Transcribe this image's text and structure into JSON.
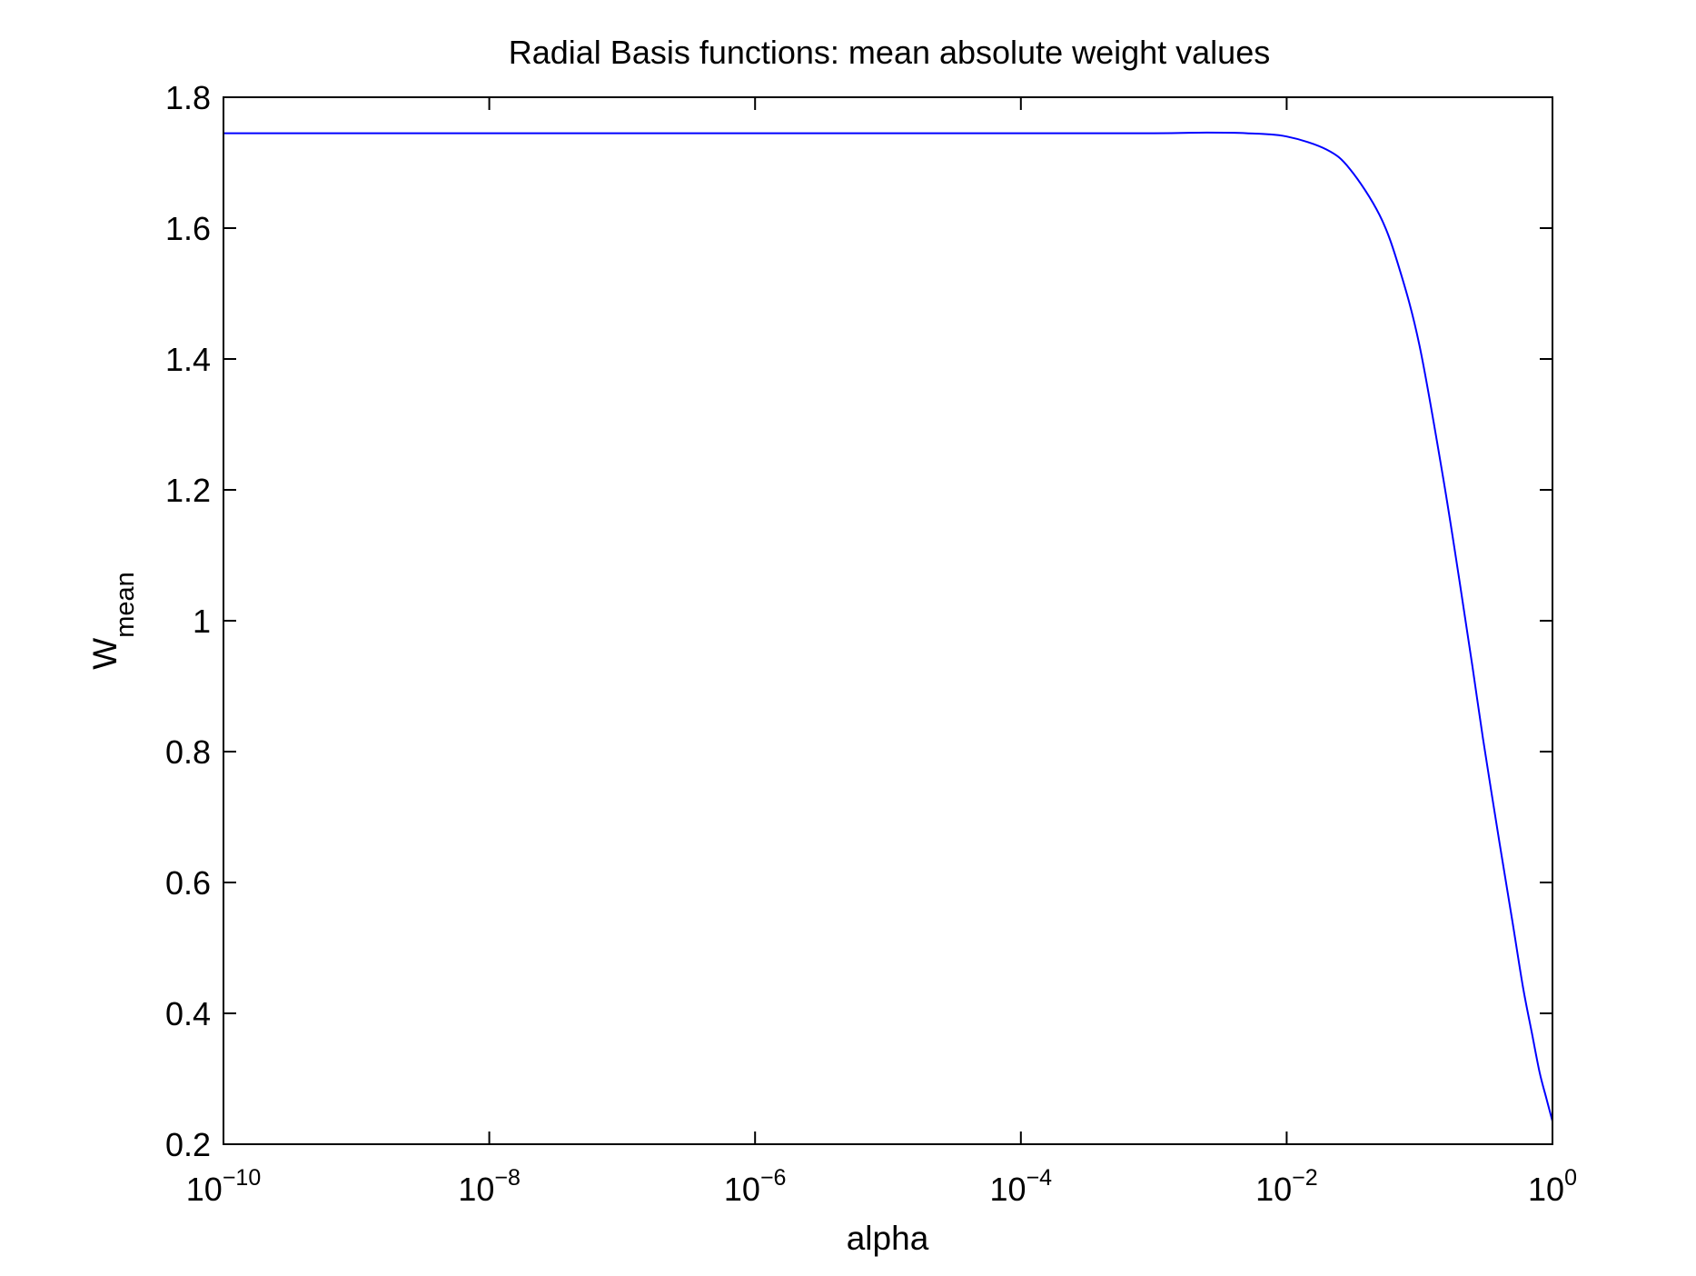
{
  "chart_data": {
    "type": "line",
    "title": "Radial Basis functions: mean absolute weight values",
    "xlabel": "alpha",
    "ylabel": {
      "main": "W",
      "subscript": "mean"
    },
    "x_scale": "log",
    "xlim": [
      1e-10,
      1
    ],
    "ylim": [
      0.2,
      1.8
    ],
    "grid": false,
    "x_ticks": [
      {
        "value": 1e-10,
        "base": "10",
        "exponent": "−10"
      },
      {
        "value": 1e-08,
        "base": "10",
        "exponent": "−8"
      },
      {
        "value": 1e-06,
        "base": "10",
        "exponent": "−6"
      },
      {
        "value": 0.0001,
        "base": "10",
        "exponent": "−4"
      },
      {
        "value": 0.01,
        "base": "10",
        "exponent": "−2"
      },
      {
        "value": 1,
        "base": "10",
        "exponent": "0"
      }
    ],
    "y_ticks": [
      {
        "value": 0.2,
        "label": "0.2"
      },
      {
        "value": 0.4,
        "label": "0.4"
      },
      {
        "value": 0.6,
        "label": "0.6"
      },
      {
        "value": 0.8,
        "label": "0.8"
      },
      {
        "value": 1.0,
        "label": "1"
      },
      {
        "value": 1.2,
        "label": "1.2"
      },
      {
        "value": 1.4,
        "label": "1.4"
      },
      {
        "value": 1.6,
        "label": "1.6"
      },
      {
        "value": 1.8,
        "label": "1.8"
      }
    ],
    "series": [
      {
        "color": "#0000ff",
        "x": [
          1e-10,
          1e-08,
          1e-06,
          0.0001,
          0.001,
          0.0025,
          0.005,
          0.01,
          0.02,
          0.03,
          0.05,
          0.07,
          0.1,
          0.15,
          0.2,
          0.25,
          0.3,
          0.4,
          0.5,
          0.6,
          0.7,
          0.8,
          0.9,
          1.0
        ],
        "y": [
          1.745,
          1.745,
          1.745,
          1.745,
          1.745,
          1.746,
          1.745,
          1.74,
          1.72,
          1.69,
          1.62,
          1.54,
          1.42,
          1.22,
          1.06,
          0.93,
          0.82,
          0.66,
          0.54,
          0.44,
          0.37,
          0.31,
          0.27,
          0.235
        ]
      }
    ]
  }
}
